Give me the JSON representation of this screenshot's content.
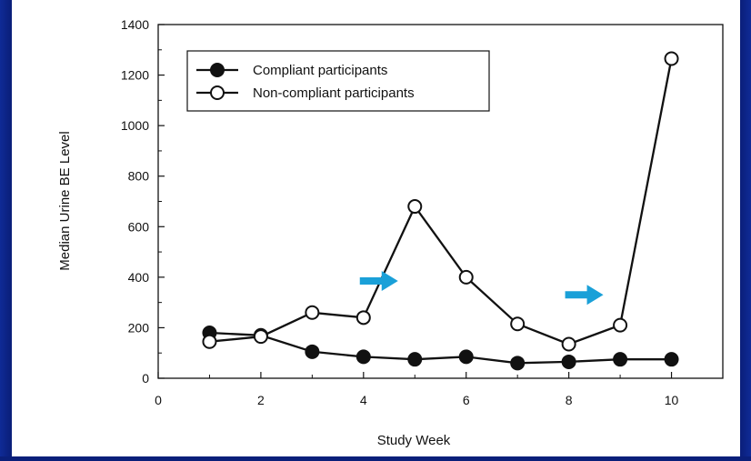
{
  "chart_data": {
    "type": "line",
    "xlabel": "Study Week",
    "ylabel": "Median Urine BE Level",
    "xlim": [
      0,
      11
    ],
    "ylim": [
      0,
      1400
    ],
    "xticks": [
      0,
      2,
      4,
      6,
      8,
      10
    ],
    "yticks": [
      0,
      200,
      400,
      600,
      800,
      1000,
      1200,
      1400
    ],
    "grid": false,
    "legend_position": "top-left",
    "series": [
      {
        "name": "Compliant participants",
        "marker": "filled-circle",
        "x": [
          1,
          2,
          3,
          4,
          5,
          6,
          7,
          8,
          9,
          10
        ],
        "y": [
          180,
          170,
          105,
          85,
          75,
          85,
          60,
          65,
          75,
          75
        ]
      },
      {
        "name": "Non-compliant participants",
        "marker": "open-circle",
        "x": [
          1,
          2,
          3,
          4,
          5,
          6,
          7,
          8,
          9,
          10
        ],
        "y": [
          145,
          165,
          260,
          240,
          680,
          400,
          215,
          135,
          210,
          1265
        ]
      }
    ],
    "annotations": [
      {
        "type": "arrow",
        "color": "#1aa0d8",
        "x": 4.3,
        "y": 385
      },
      {
        "type": "arrow",
        "color": "#1aa0d8",
        "x": 8.3,
        "y": 330
      }
    ]
  }
}
